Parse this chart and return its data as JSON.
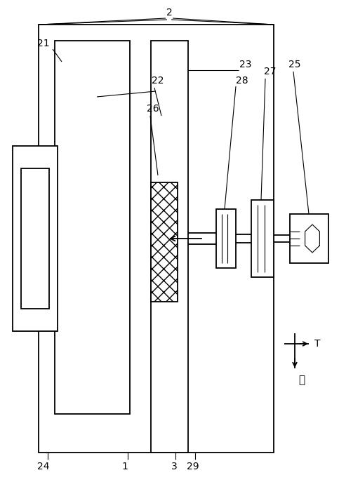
{
  "fig_width": 4.83,
  "fig_height": 6.87,
  "dpi": 100,
  "bg_color": "#ffffff",
  "lc": "#000000",
  "lw": 1.3,
  "tlw": 0.8
}
